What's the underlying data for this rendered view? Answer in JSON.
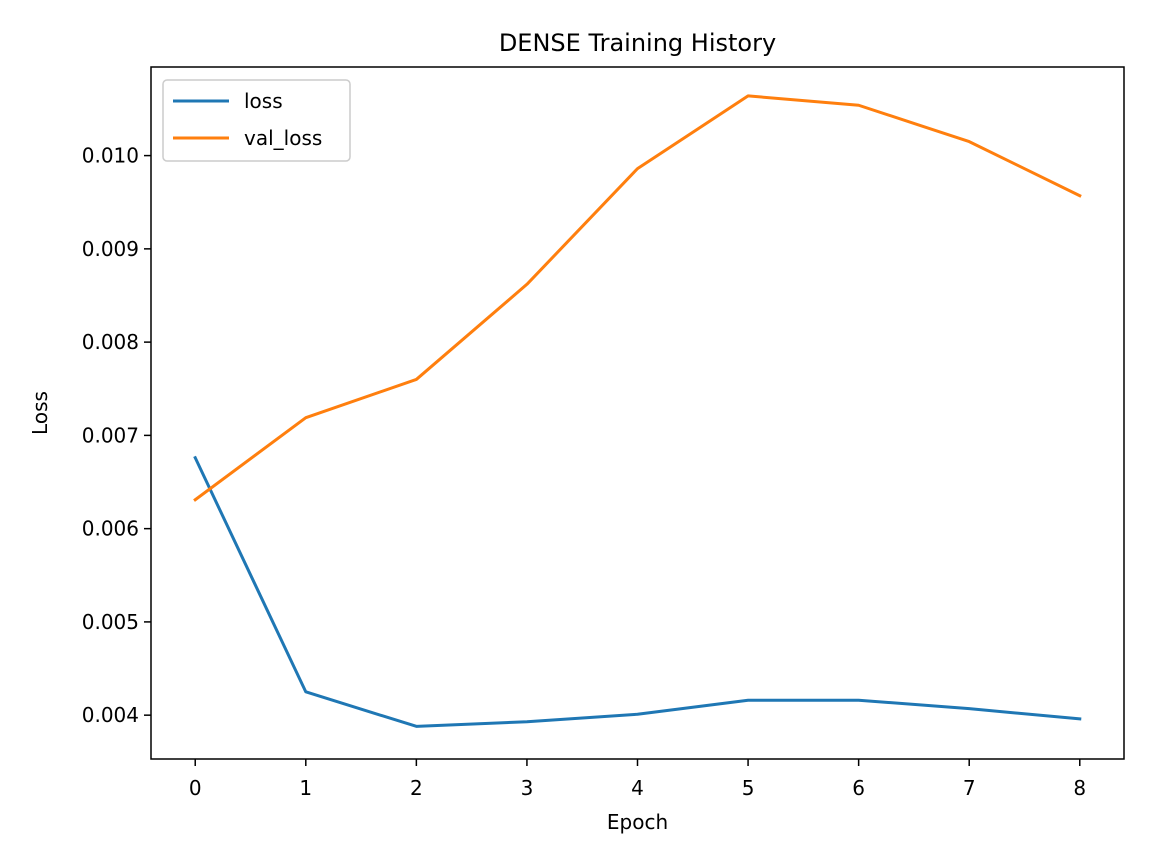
{
  "chart_data": {
    "type": "line",
    "title": "DENSE Training History",
    "xlabel": "Epoch",
    "ylabel": "Loss",
    "x": [
      0,
      1,
      2,
      3,
      4,
      5,
      6,
      7,
      8
    ],
    "xlim": [
      -0.4,
      8.4
    ],
    "ylim": [
      0.00353,
      0.01095
    ],
    "xticks": [
      "0",
      "1",
      "2",
      "3",
      "4",
      "5",
      "6",
      "7",
      "8"
    ],
    "yticks": [
      0.004,
      0.005,
      0.006,
      0.007,
      0.008,
      0.009,
      0.01
    ],
    "ytick_labels": [
      "0.004",
      "0.005",
      "0.006",
      "0.007",
      "0.008",
      "0.009",
      "0.010"
    ],
    "grid": false,
    "legend_position": "top-left",
    "series": [
      {
        "name": "loss",
        "color": "#1f77b4",
        "values": [
          0.00676,
          0.00425,
          0.00388,
          0.00393,
          0.00401,
          0.00416,
          0.00416,
          0.00407,
          0.00396
        ]
      },
      {
        "name": "val_loss",
        "color": "#ff7f0e",
        "values": [
          0.00631,
          0.00719,
          0.0076,
          0.00862,
          0.00986,
          0.01064,
          0.01054,
          0.01015,
          0.00957
        ]
      }
    ]
  }
}
